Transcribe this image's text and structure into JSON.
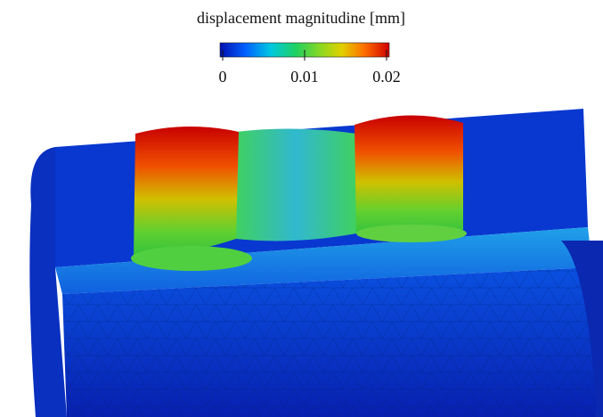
{
  "colorbar": {
    "title": "displacement magnitudine  [mm]",
    "lim": [
      0,
      0.02
    ],
    "ticks": [
      0,
      0.01,
      0.02
    ]
  }
}
